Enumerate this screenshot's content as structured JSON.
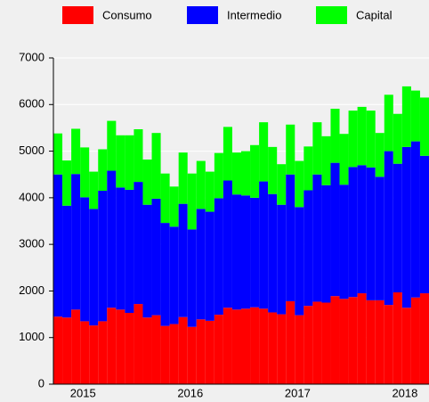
{
  "chart_data": {
    "type": "stacked_bar",
    "categories": [
      null,
      null,
      null,
      null,
      "2015",
      null,
      null,
      null,
      null,
      null,
      null,
      null,
      null,
      null,
      null,
      null,
      "2016",
      null,
      null,
      null,
      null,
      null,
      null,
      null,
      null,
      null,
      null,
      null,
      "2017",
      null,
      null,
      null,
      null,
      null,
      null,
      null,
      null,
      null,
      null,
      null,
      "2018",
      null
    ],
    "series": [
      {
        "name": "Consumo",
        "color": "#ff0000",
        "values": [
          1450,
          1430,
          1600,
          1350,
          1260,
          1350,
          1640,
          1600,
          1530,
          1720,
          1430,
          1480,
          1250,
          1290,
          1440,
          1230,
          1390,
          1360,
          1490,
          1640,
          1600,
          1620,
          1650,
          1620,
          1540,
          1500,
          1780,
          1480,
          1680,
          1770,
          1750,
          1890,
          1830,
          1870,
          1950,
          1800,
          1800,
          1700,
          1970,
          1640,
          1860,
          1950
        ]
      },
      {
        "name": "Intermedio",
        "color": "#0000ff",
        "values": [
          3050,
          2400,
          2910,
          2660,
          2500,
          2800,
          2940,
          2620,
          2640,
          2620,
          2420,
          2500,
          2210,
          2090,
          2430,
          2090,
          2370,
          2340,
          2500,
          2730,
          2470,
          2430,
          2350,
          2730,
          2540,
          2350,
          2720,
          2320,
          2480,
          2730,
          2520,
          2860,
          2450,
          2790,
          2750,
          2850,
          2650,
          3300,
          2760,
          3450,
          3350,
          2950
        ]
      },
      {
        "name": "Capital",
        "color": "#00ff00",
        "values": [
          880,
          970,
          970,
          1070,
          800,
          890,
          1070,
          1120,
          1170,
          1130,
          970,
          1410,
          1060,
          860,
          1100,
          1200,
          1030,
          860,
          970,
          1150,
          900,
          950,
          1130,
          1270,
          1010,
          870,
          1070,
          990,
          940,
          1120,
          1050,
          1160,
          1090,
          1210,
          1250,
          1220,
          940,
          1210,
          1070,
          1300,
          1090,
          1250
        ]
      }
    ],
    "ylim": [
      0,
      7000
    ],
    "yticks": [
      0,
      1000,
      2000,
      3000,
      4000,
      5000,
      6000,
      7000
    ],
    "grid": true
  }
}
